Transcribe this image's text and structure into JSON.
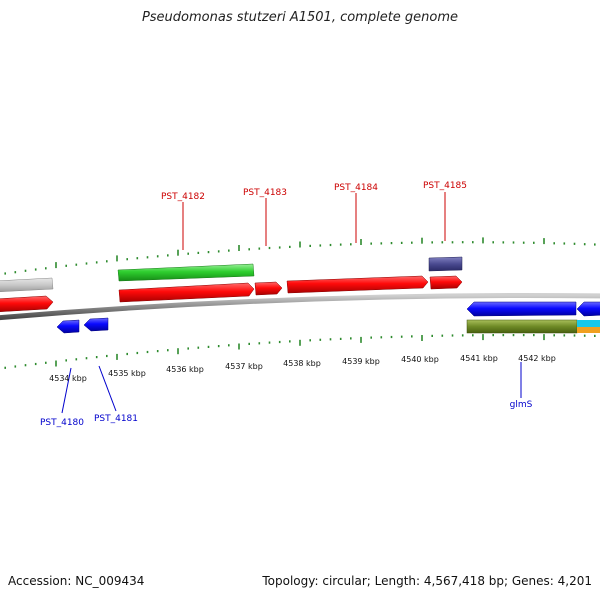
{
  "title": "Pseudomonas stutzeri A1501, complete genome",
  "footer": {
    "accession": "Accession: NC_009434",
    "summary": "Topology: circular; Length: 4,567,418 bp; Genes: 4,201"
  },
  "axis_labels": [
    "4534 kbp",
    "4535 kbp",
    "4536 kbp",
    "4537 kbp",
    "4538 kbp",
    "4539 kbp",
    "4540 kbp",
    "4541 kbp",
    "4542 kbp"
  ],
  "gene_labels": {
    "top": [
      "PST_4182",
      "PST_4183",
      "PST_4184",
      "PST_4185"
    ],
    "bottom": [
      "PST_4180",
      "PST_4181",
      "glmS"
    ]
  },
  "colors": {
    "forward_label": "#cc0000",
    "reverse_label": "#0000cc",
    "tick": "#2e8b2e",
    "backbone": "#8a8a8a"
  }
}
